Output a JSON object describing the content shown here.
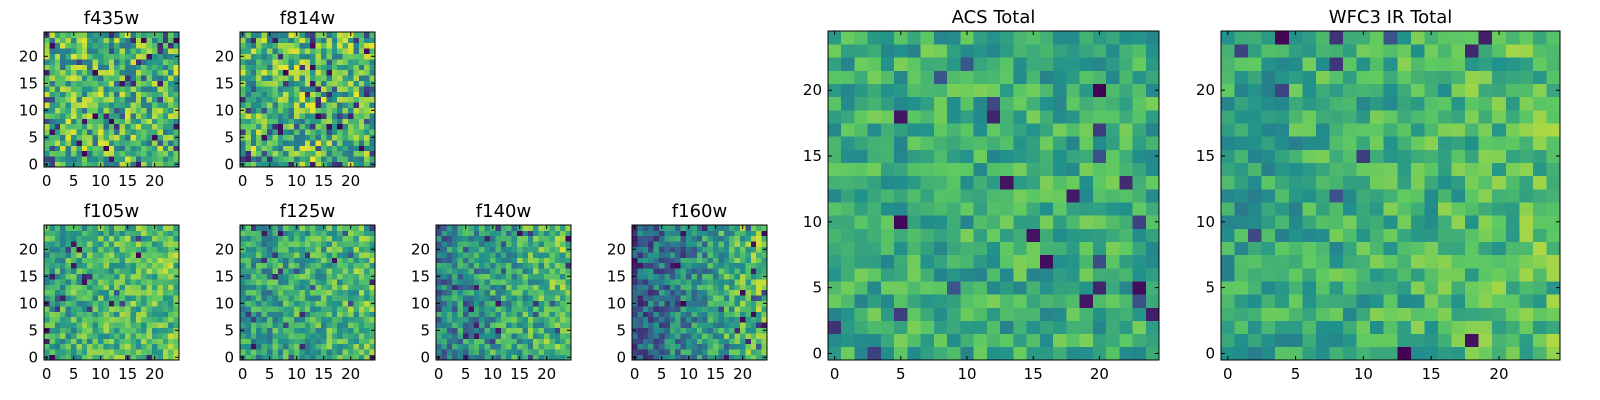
{
  "colors": {
    "colormap": "viridis",
    "stops": [
      "#440154",
      "#3b528b",
      "#21918c",
      "#5ec962",
      "#fde725"
    ]
  },
  "chart_data": [
    {
      "type": "heatmap",
      "title": "f435w",
      "grid": false,
      "xlim": [
        0,
        24
      ],
      "ylim": [
        0,
        24
      ],
      "xticks": [
        0,
        5,
        10,
        15,
        20
      ],
      "yticks": [
        0,
        5,
        10,
        15,
        20
      ],
      "values": "24x24 pixel map of uniform noise, mostly green/yellow with scattered dark cells",
      "texture": {
        "seed": 11,
        "mean": 0.66,
        "spread": 0.3,
        "darkFrac": 0.08
      }
    },
    {
      "type": "heatmap",
      "title": "f814w",
      "grid": false,
      "xlim": [
        0,
        24
      ],
      "ylim": [
        0,
        24
      ],
      "xticks": [
        0,
        5,
        10,
        15,
        20
      ],
      "yticks": [
        0,
        5,
        10,
        15,
        20
      ],
      "texture": {
        "seed": 23,
        "mean": 0.68,
        "spread": 0.3,
        "darkFrac": 0.08
      }
    },
    {
      "type": "heatmap",
      "title": "f105w",
      "grid": false,
      "xlim": [
        0,
        24
      ],
      "ylim": [
        0,
        24
      ],
      "xticks": [
        0,
        5,
        10,
        15,
        20
      ],
      "yticks": [
        0,
        5,
        10,
        15,
        20
      ],
      "texture": {
        "seed": 37,
        "mean": 0.66,
        "spread": 0.22,
        "darkFrac": 0.04,
        "gradient": 0.1
      }
    },
    {
      "type": "heatmap",
      "title": "f125w",
      "grid": false,
      "xlim": [
        0,
        24
      ],
      "ylim": [
        0,
        24
      ],
      "xticks": [
        0,
        5,
        10,
        15,
        20
      ],
      "yticks": [
        0,
        5,
        10,
        15,
        20
      ],
      "texture": {
        "seed": 41,
        "mean": 0.62,
        "spread": 0.22,
        "darkFrac": 0.05,
        "gradient": 0.15
      }
    },
    {
      "type": "heatmap",
      "title": "f140w",
      "grid": false,
      "xlim": [
        0,
        24
      ],
      "ylim": [
        0,
        24
      ],
      "xticks": [
        0,
        5,
        10,
        15,
        20
      ],
      "yticks": [
        0,
        5,
        10,
        15,
        20
      ],
      "texture": {
        "seed": 53,
        "mean": 0.58,
        "spread": 0.24,
        "darkFrac": 0.05,
        "gradient": 0.3
      }
    },
    {
      "type": "heatmap",
      "title": "f160w",
      "grid": false,
      "xlim": [
        0,
        24
      ],
      "ylim": [
        0,
        24
      ],
      "xticks": [
        0,
        5,
        10,
        15,
        20
      ],
      "yticks": [
        0,
        5,
        10,
        15,
        20
      ],
      "texture": {
        "seed": 67,
        "mean": 0.52,
        "spread": 0.22,
        "darkFrac": 0.05,
        "gradient": 0.45
      }
    },
    {
      "type": "heatmap",
      "title": "ACS Total",
      "grid": false,
      "xlim": [
        0,
        24
      ],
      "ylim": [
        0,
        24
      ],
      "xticks": [
        0,
        5,
        10,
        15,
        20
      ],
      "yticks": [
        0,
        5,
        10,
        15,
        20
      ],
      "texture": {
        "seed": 79,
        "mean": 0.62,
        "spread": 0.18,
        "darkFrac": 0.04
      }
    },
    {
      "type": "heatmap",
      "title": "WFC3 IR Total",
      "grid": false,
      "xlim": [
        0,
        24
      ],
      "ylim": [
        0,
        24
      ],
      "xticks": [
        0,
        5,
        10,
        15,
        20
      ],
      "yticks": [
        0,
        5,
        10,
        15,
        20
      ],
      "texture": {
        "seed": 97,
        "mean": 0.64,
        "spread": 0.18,
        "darkFrac": 0.03,
        "gradient": 0.12
      }
    }
  ]
}
